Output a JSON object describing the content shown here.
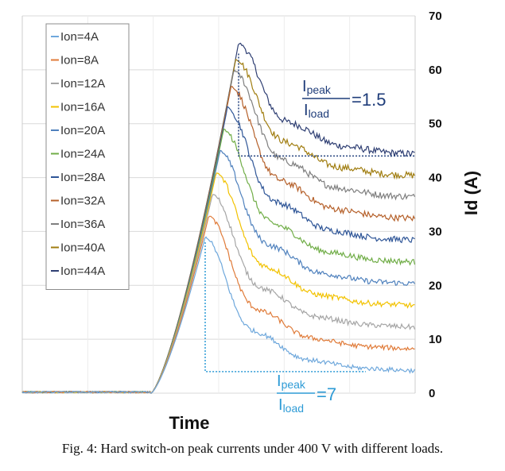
{
  "chart_data": {
    "type": "line",
    "xlabel": "Time",
    "ylabel": "Id (A)",
    "ylim": [
      0,
      70
    ],
    "yticks": [
      "0",
      "10",
      "20",
      "30",
      "40",
      "50",
      "60",
      "70"
    ],
    "grid": "horizontal",
    "legend_position": "top-left",
    "series": [
      {
        "name": "Ion=4A",
        "color": "#6fa8dc",
        "final": 4,
        "peak": 29
      },
      {
        "name": "Ion=8A",
        "color": "#e07b39",
        "final": 8,
        "peak": 33
      },
      {
        "name": "Ion=12A",
        "color": "#a5a5a5",
        "final": 12,
        "peak": 37
      },
      {
        "name": "Ion=16A",
        "color": "#f2c200",
        "final": 16,
        "peak": 41
      },
      {
        "name": "Ion=20A",
        "color": "#4f81bd",
        "final": 20,
        "peak": 45
      },
      {
        "name": "Ion=24A",
        "color": "#70ad47",
        "final": 24,
        "peak": 49
      },
      {
        "name": "Ion=28A",
        "color": "#2e5597",
        "final": 28,
        "peak": 53
      },
      {
        "name": "Ion=32A",
        "color": "#b5602a",
        "final": 32,
        "peak": 57
      },
      {
        "name": "Ion=36A",
        "color": "#7f7f7f",
        "final": 36,
        "peak": 60
      },
      {
        "name": "Ion=40A",
        "color": "#a07d10",
        "final": 40,
        "peak": 62
      },
      {
        "name": "Ion=44A",
        "color": "#2f3f73",
        "final": 44,
        "peak": 65
      }
    ],
    "annotations": [
      {
        "numerator": "I",
        "num_sub": "peak",
        "denominator": "I",
        "den_sub": "load",
        "value": "=1.5",
        "color": "#1f3d7a"
      },
      {
        "numerator": "I",
        "num_sub": "peak",
        "denominator": "I",
        "den_sub": "load",
        "value": "=7",
        "color": "#2e9bd6"
      }
    ]
  },
  "caption": "Fig. 4: Hard switch-on peak currents under 400 V with different loads."
}
